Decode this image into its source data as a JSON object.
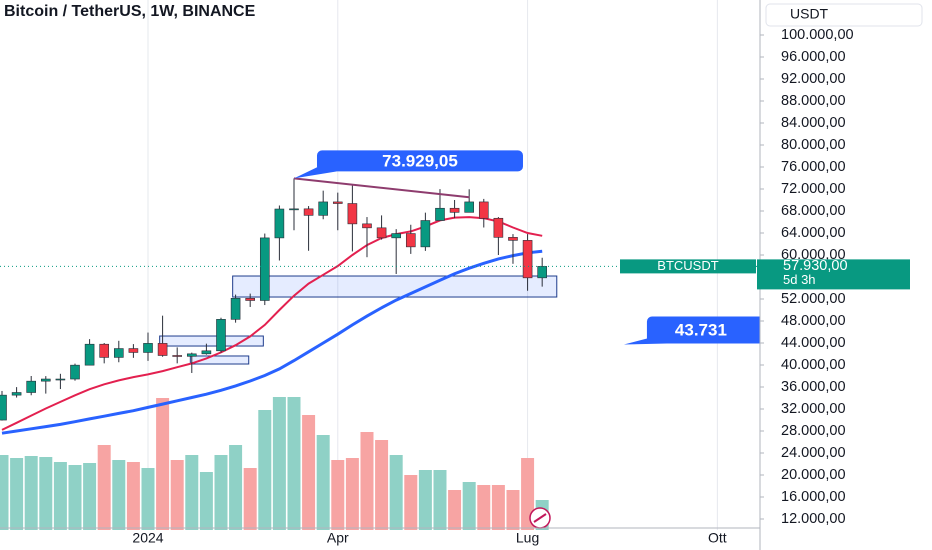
{
  "chart_data": {
    "type": "candlestick",
    "title": "Bitcoin / TetherUS, 1W, BINANCE",
    "currency": "USDT",
    "x": [
      0,
      1,
      2,
      3,
      4,
      5,
      6,
      7,
      8,
      9,
      10,
      11,
      12,
      13,
      14,
      15,
      16,
      17,
      18,
      19,
      20,
      21,
      22,
      23,
      24,
      25,
      26,
      27,
      28,
      29,
      30,
      31,
      32,
      33,
      34,
      35,
      36,
      37
    ],
    "open": [
      29990,
      34520,
      35000,
      37060,
      37450,
      37450,
      39970,
      43780,
      41380,
      42990,
      42280,
      43930,
      41730,
      41580,
      42030,
      42580,
      48300,
      52130,
      51730,
      63110,
      68360,
      68390,
      67210,
      69650,
      69360,
      65660,
      64940,
      63120,
      63900,
      61480,
      66270,
      68500,
      67760,
      69650,
      66680,
      63210,
      62660,
      55850
    ],
    "high": [
      35280,
      35980,
      38000,
      37980,
      38400,
      40250,
      44700,
      44000,
      44400,
      43800,
      45900,
      48970,
      43200,
      42250,
      43880,
      48600,
      52800,
      52980,
      63900,
      69000,
      73929.05,
      68900,
      71700,
      71340,
      72800,
      66900,
      67200,
      64700,
      65500,
      67700,
      71980,
      70000,
      71950,
      70200,
      66900,
      63800,
      63800,
      59500
    ],
    "low": [
      29900,
      34080,
      34500,
      34800,
      35630,
      37150,
      39970,
      40300,
      40500,
      41300,
      40750,
      41500,
      40300,
      38550,
      41880,
      42250,
      47700,
      50550,
      50900,
      59000,
      64500,
      60770,
      66500,
      64500,
      60650,
      59600,
      62800,
      56550,
      60200,
      60750,
      66200,
      66700,
      68600,
      65000,
      60000,
      58400,
      53500,
      54250
    ],
    "close": [
      34520,
      35000,
      37060,
      37450,
      37450,
      39970,
      43780,
      41380,
      42990,
      42280,
      43930,
      41730,
      41580,
      42030,
      42580,
      48300,
      52130,
      51730,
      63110,
      68360,
      68390,
      67210,
      69650,
      69360,
      65660,
      64940,
      63120,
      63900,
      61480,
      66270,
      68500,
      67760,
      69650,
      66680,
      63210,
      62660,
      55850,
      57930
    ],
    "up_color": "#089981",
    "down_color": "#f23645",
    "volume": [
      75,
      72,
      74,
      73,
      68,
      65,
      67,
      85,
      70,
      68,
      62,
      132,
      70,
      75,
      58,
      75,
      85,
      62,
      120,
      133,
      133,
      115,
      95,
      70,
      72,
      98,
      90,
      75,
      55,
      60,
      60,
      40,
      48,
      45,
      45,
      40,
      72,
      30
    ],
    "volume_ylim": [
      0,
      530
    ],
    "volume_up_color": "#8fd1c6",
    "volume_down_color": "#f7a4a3",
    "series": [
      {
        "color": "#e3204f",
        "values": [
          28200,
          29500,
          30800,
          32100,
          33300,
          34500,
          35600,
          36500,
          37200,
          37800,
          38300,
          38900,
          39600,
          40300,
          41200,
          42300,
          43600,
          45200,
          47300,
          50000,
          52600,
          54800,
          56400,
          58000,
          60000,
          61800,
          63100,
          63800,
          64300,
          65200,
          66300,
          66800,
          66900,
          66700,
          66100,
          65000,
          64000,
          63500
        ]
      },
      {
        "color": "#2962ff",
        "values": [
          27600,
          28000,
          28400,
          28800,
          29200,
          29700,
          30200,
          30700,
          31200,
          31700,
          32300,
          32900,
          33500,
          34100,
          34700,
          35400,
          36200,
          37100,
          38100,
          39300,
          40800,
          42400,
          44000,
          45600,
          47300,
          48900,
          50400,
          51800,
          53000,
          54200,
          55400,
          56600,
          57600,
          58500,
          59300,
          59900,
          60400,
          60700
        ]
      }
    ],
    "xlim": [
      -0.137,
      51.92
    ],
    "xticks": [
      {
        "value": 10,
        "label": "2024"
      },
      {
        "value": 23,
        "label": "Apr"
      },
      {
        "value": 36,
        "label": "Lug"
      },
      {
        "value": 49,
        "label": "Ott"
      }
    ],
    "ylim": [
      10000,
      106364
    ],
    "yticks": [
      {
        "value": 100000,
        "label": "100.000,00"
      },
      {
        "value": 96000,
        "label": "96.000,00"
      },
      {
        "value": 92000,
        "label": "92.000,00"
      },
      {
        "value": 88000,
        "label": "88.000,00"
      },
      {
        "value": 84000,
        "label": "84.000,00"
      },
      {
        "value": 80000,
        "label": "80.000,00"
      },
      {
        "value": 76000,
        "label": "76.000,00"
      },
      {
        "value": 72000,
        "label": "72.000,00"
      },
      {
        "value": 68000,
        "label": "68.000,00"
      },
      {
        "value": 64000,
        "label": "64.000,00"
      },
      {
        "value": 60000,
        "label": "60.000,00"
      },
      {
        "value": 52000,
        "label": "52.000,00"
      },
      {
        "value": 48000,
        "label": "48.000,00"
      },
      {
        "value": 44000,
        "label": "44.000,00"
      },
      {
        "value": 40000,
        "label": "40.000,00"
      },
      {
        "value": 36000,
        "label": "36.000,00"
      },
      {
        "value": 32000,
        "label": "32.000,00"
      },
      {
        "value": 28000,
        "label": "28.000,00"
      },
      {
        "value": 24000,
        "label": "24.000,00"
      },
      {
        "value": 20000,
        "label": "20.000,00"
      },
      {
        "value": 16000,
        "label": "16.000,00"
      },
      {
        "value": 12000,
        "label": "12.000,00"
      }
    ],
    "last_price": {
      "symbol": "BTCUSDT",
      "value": 57930,
      "label": "57.930,00",
      "countdown": "5d 3h",
      "color": "#089981"
    },
    "annotations": [
      {
        "x": 20,
        "value": 73929.05,
        "label": "73.929,05"
      },
      {
        "x": 42.6,
        "value": 43731,
        "label": "43.731"
      }
    ],
    "trendline": {
      "x": [
        20,
        32
      ],
      "y": [
        73929.05,
        70500
      ],
      "color": "#8e3c6e"
    },
    "zones": [
      {
        "x": [
          15.8,
          38
        ],
        "y": [
          52360,
          56180
        ]
      },
      {
        "x": [
          10.8,
          17.9
        ],
        "y": [
          43450,
          45270
        ]
      },
      {
        "x": [
          12.9,
          16.9
        ],
        "y": [
          40180,
          41640
        ]
      }
    ]
  }
}
